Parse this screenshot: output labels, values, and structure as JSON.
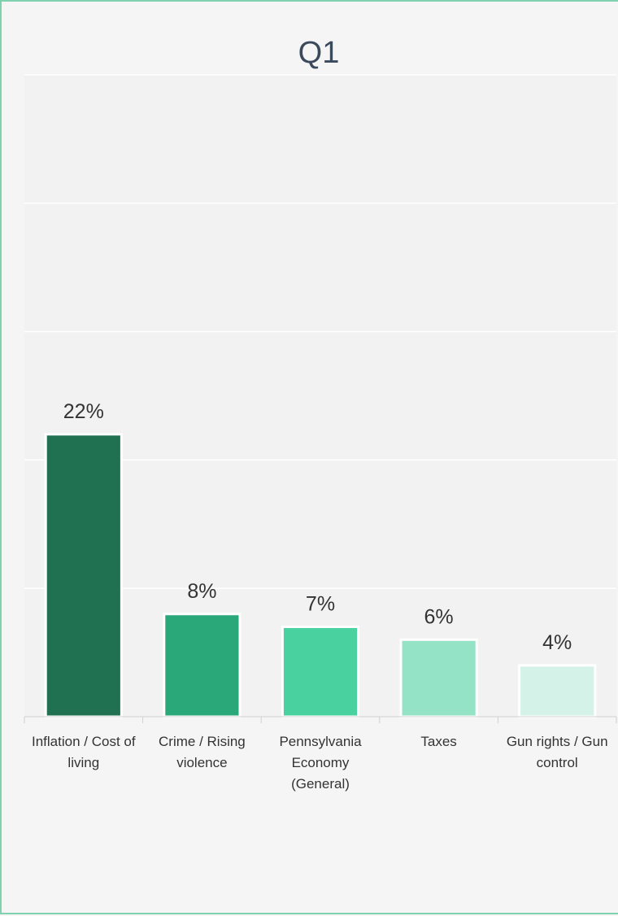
{
  "chart_data": {
    "type": "bar",
    "title": "Q1",
    "categories": [
      [
        "Inflation / Cost of",
        "living"
      ],
      [
        "Crime / Rising",
        "violence"
      ],
      [
        "Pennsylvania",
        "Economy",
        "(General)"
      ],
      [
        "Taxes"
      ],
      [
        "Gun rights / Gun",
        "control"
      ]
    ],
    "values": [
      22,
      8,
      7,
      6,
      4
    ],
    "data_labels": [
      "22%",
      "8%",
      "7%",
      "6%",
      "4%"
    ],
    "ylim": [
      0,
      50
    ],
    "grid": true,
    "colors": [
      "#1f7152",
      "#2aa87a",
      "#4ad1a0",
      "#94e3c6",
      "#d4f2e7"
    ],
    "plot_background": "#f2f2f2",
    "gridline_color": "#ffffff",
    "border_color": "#7fd1b0"
  }
}
